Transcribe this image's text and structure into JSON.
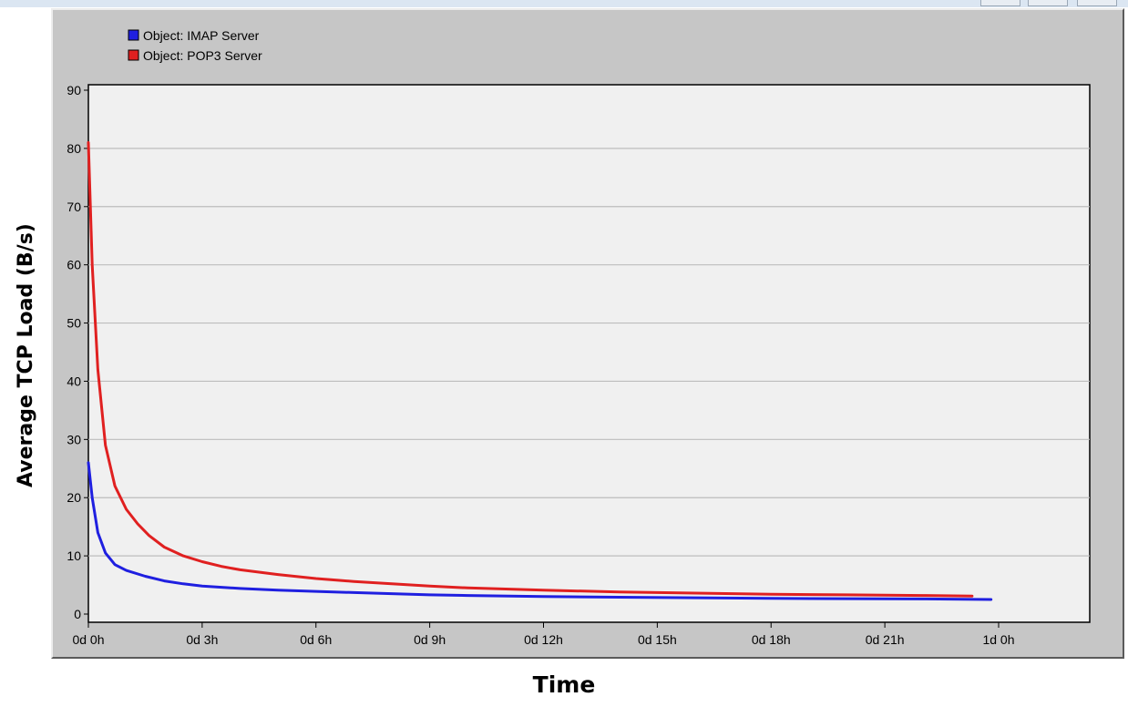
{
  "chart_data": {
    "type": "line",
    "title": "",
    "xlabel": "Time",
    "ylabel": "Average TCP Load (B/s)",
    "ylim": [
      0,
      90
    ],
    "yticks": [
      0,
      10,
      20,
      30,
      40,
      50,
      60,
      70,
      80,
      90
    ],
    "xlim_hours": [
      0,
      24
    ],
    "xtick_labels": [
      "0d 0h",
      "0d 3h",
      "0d 6h",
      "0d 9h",
      "0d 12h",
      "0d 15h",
      "0d 18h",
      "0d 21h",
      "1d 0h"
    ],
    "grid": true,
    "legend_position": "top-left",
    "series": [
      {
        "name": "Object: IMAP Server",
        "color": "#1f1fe0",
        "x": [
          0,
          0.1,
          0.25,
          0.45,
          0.7,
          1.0,
          1.5,
          2.0,
          2.5,
          3.0,
          4.0,
          5.0,
          6.0,
          7.0,
          8.0,
          9.0,
          10.0,
          12.0,
          14.0,
          16.0,
          18.0,
          20.0,
          22.0,
          23.8
        ],
        "y": [
          26,
          20,
          14,
          10.5,
          8.5,
          7.5,
          6.5,
          5.7,
          5.2,
          4.8,
          4.4,
          4.1,
          3.9,
          3.7,
          3.5,
          3.3,
          3.2,
          3.0,
          2.9,
          2.8,
          2.7,
          2.65,
          2.6,
          2.5
        ]
      },
      {
        "name": "Object: POP3 Server",
        "color": "#e02020",
        "x": [
          0,
          0.1,
          0.25,
          0.45,
          0.7,
          1.0,
          1.3,
          1.6,
          2.0,
          2.5,
          3.0,
          3.5,
          4.0,
          5.0,
          6.0,
          7.0,
          8.0,
          9.0,
          10.0,
          12.0,
          14.0,
          16.0,
          18.0,
          20.0,
          22.0,
          23.3
        ],
        "y": [
          81,
          60,
          42,
          29,
          22,
          18,
          15.5,
          13.5,
          11.5,
          10,
          9,
          8.2,
          7.6,
          6.8,
          6.1,
          5.6,
          5.2,
          4.8,
          4.5,
          4.1,
          3.8,
          3.6,
          3.4,
          3.3,
          3.2,
          3.1
        ]
      }
    ]
  }
}
